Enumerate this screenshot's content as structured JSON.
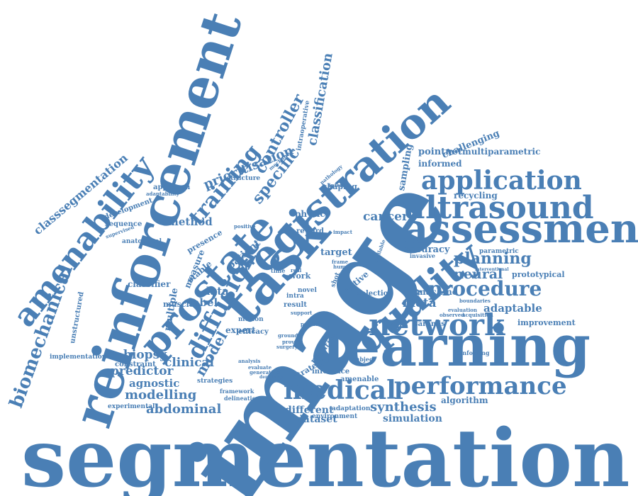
{
  "cloud": {
    "color": "#4a7fb5",
    "background": "#ffffff",
    "words": {
      "segmentation": "segmentation",
      "image": "image",
      "learning": "learning",
      "reinforcement": "reinforcement",
      "assessment": "assessment",
      "registration": "registration",
      "task": "task",
      "prostate": "prostate",
      "ultrasound": "ultrasound",
      "quality": "quality",
      "amenability": "amenability",
      "network": "network",
      "medical": "medical",
      "performance": "performance",
      "application": "application",
      "procedure": "procedure",
      "diffusion": "diffusion",
      "biomechanical": "biomechanical",
      "classsegmentation": "classsegmentation",
      "training": "training",
      "planning": "planning",
      "model": "model",
      "classification": "classification",
      "controller": "controller",
      "specific": "specific",
      "prioritisation": "prioritisation",
      "synthesis": "synthesis",
      "modelling": "modelling",
      "abdominal": "abdominal",
      "predictor": "predictor",
      "agnostic": "agnostic",
      "clinical": "clinical",
      "biopsy": "biopsy",
      "neural": "neural",
      "meta": "meta",
      "adaptable": "adaptable",
      "dataset": "dataset",
      "simulation": "simulation",
      "different": "different",
      "cancer": "cancer",
      "data": "data",
      "label": "label",
      "method": "method",
      "expert": "expert",
      "patient": "patient",
      "accuracy": "accuracy",
      "sampling": "sampling",
      "challenging": "challenging",
      "pointnet": "pointnet",
      "multiparametric": "multiparametric",
      "informed": "informed",
      "recycling": "recycling",
      "algorithm": "algorithm",
      "improvement": "improvement",
      "prototypical": "prototypical",
      "machine": "machine",
      "parametric": "parametric",
      "target": "target",
      "work": "work",
      "physic": "physic",
      "reward": "reward",
      "shaping": "shaping",
      "intraoperative": "intraoperative",
      "approach": "approach",
      "adaptability": "adaptability",
      "development": "development",
      "sequence": "sequence",
      "supervised": "supervised",
      "anatomical": "anatomical",
      "classifier": "classifier",
      "unstructured": "unstructured",
      "implementation": "implementation",
      "muscle": "muscle",
      "multiple": "multiple",
      "stable": "stable",
      "measure": "measure",
      "presence": "presence",
      "constraint": "constraint",
      "experimental": "experimental",
      "strategies": "strategies",
      "framework": "framework",
      "delineation": "delineation",
      "inference": "inference",
      "amenable": "amenable",
      "adaptation": "adaptation",
      "environment": "environment",
      "strategy": "strategy",
      "negative": "negative",
      "efficacy": "efficacy",
      "spatial": "spatial",
      "saramis": "saramis",
      "selection": "selection",
      "interest": "interest",
      "subject": "subject",
      "motion": "motion",
      "result": "result",
      "active": "active",
      "evaluation": "evaluation",
      "observed": "observed",
      "acquisition": "acquisition",
      "reinforcing": "reinforcing",
      "invasive": "invasive",
      "boundaries": "boundaries",
      "structure": "structure",
      "impact": "impact",
      "novel": "novel",
      "intra": "intra",
      "shot": "shot",
      "positive": "positive",
      "frame": "frame",
      "human": "human",
      "predict": "predict",
      "surgery": "surgery",
      "provide": "provide",
      "support": "support",
      "ground": "ground",
      "analysis": "analysis",
      "evaluate": "evaluate",
      "generating": "generating",
      "denoising": "denoising",
      "time": "time",
      "real": "real",
      "mechanism": "mechanism",
      "pathology": "pathology",
      "interventional": "interventional",
      "available": "available"
    }
  }
}
